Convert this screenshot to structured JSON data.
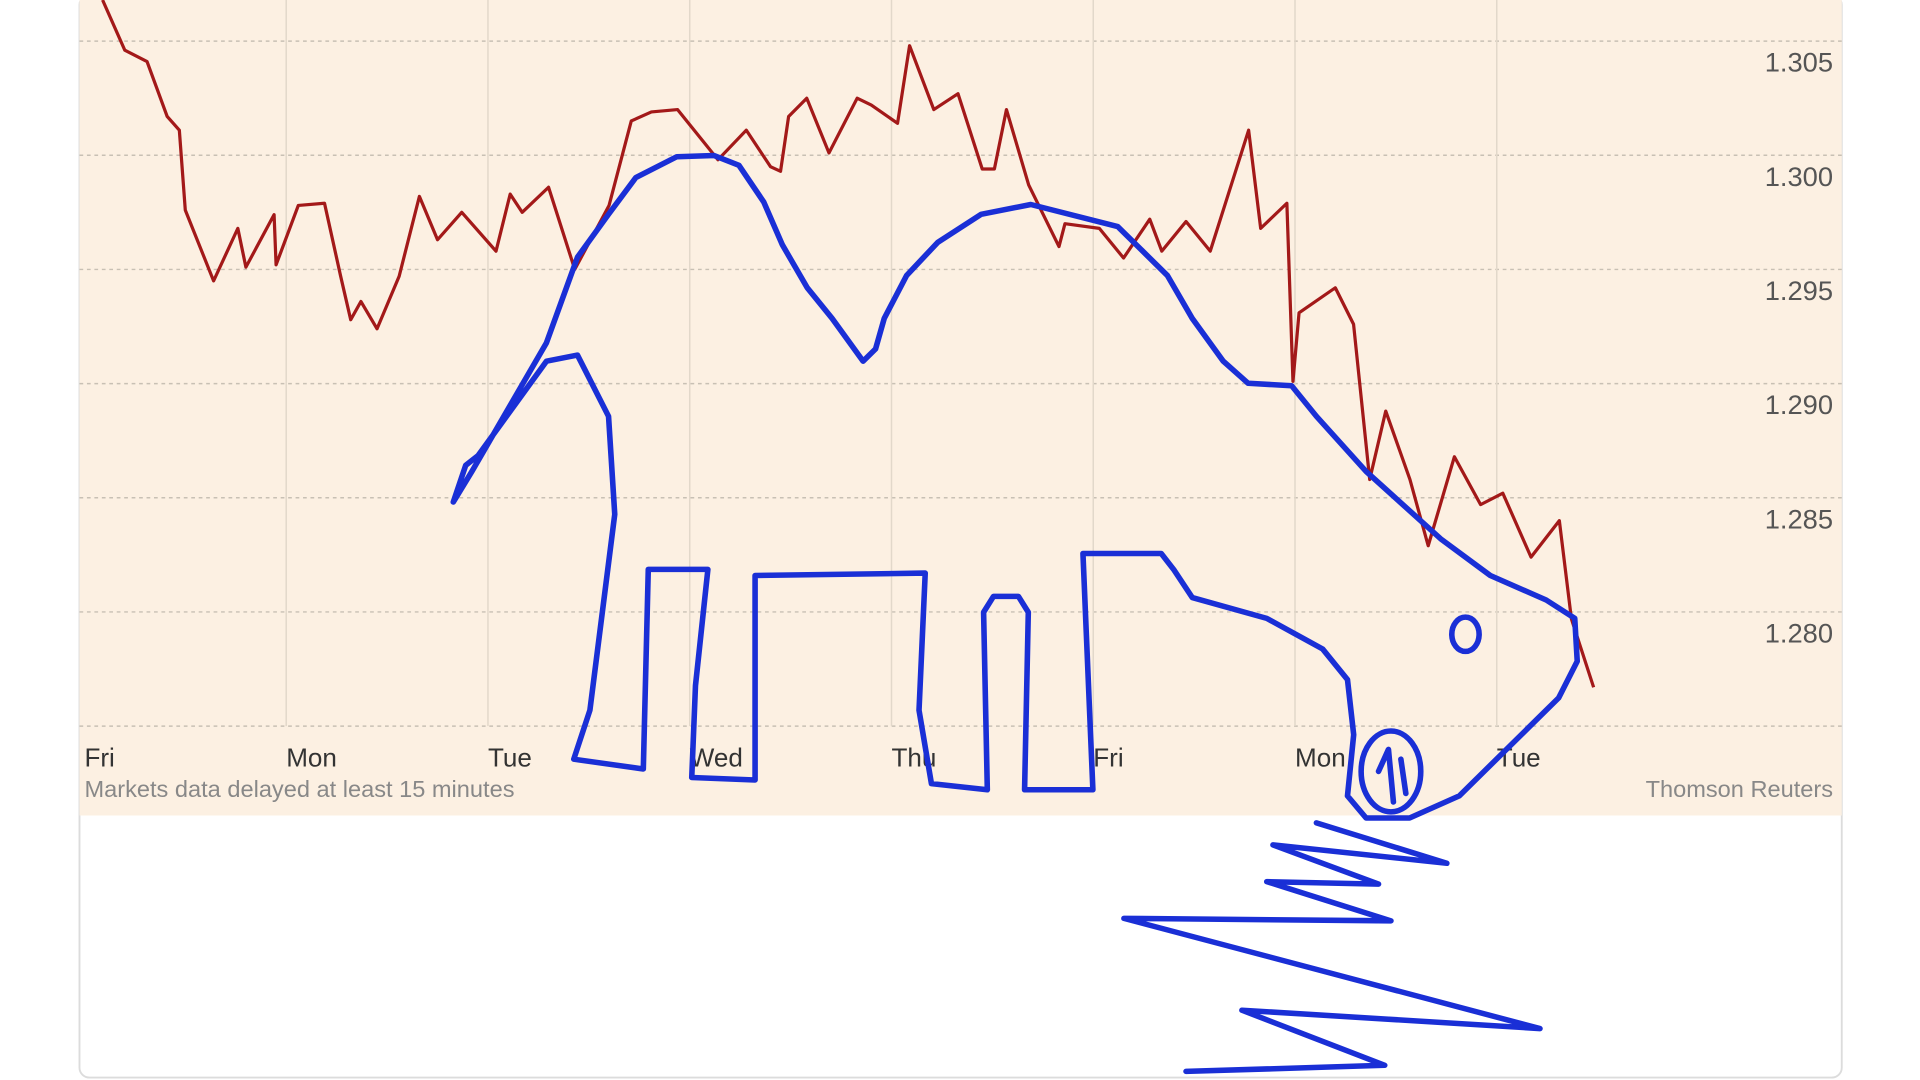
{
  "chart_data": {
    "type": "line",
    "xlim": [
      0,
      8.71
    ],
    "ylim": [
      1.275,
      1.3068
    ],
    "xticks": [
      {
        "value": 0,
        "label": "Fri"
      },
      {
        "value": 1,
        "label": "Mon"
      },
      {
        "value": 2,
        "label": "Tue"
      },
      {
        "value": 3,
        "label": "Wed"
      },
      {
        "value": 4,
        "label": "Thu"
      },
      {
        "value": 5,
        "label": "Fri"
      },
      {
        "value": 6,
        "label": "Mon"
      },
      {
        "value": 7,
        "label": "Tue"
      }
    ],
    "yticks": [
      {
        "value": 1.28,
        "label": "1.280"
      },
      1.285,
      {
        "value": 1.29,
        "label": "1.290"
      },
      1.295,
      {
        "value": 1.3,
        "label": "1.300"
      },
      1.305
    ],
    "grid": true,
    "note": "Markets data delayed at least 15 minutes",
    "source": "Thomson Reuters",
    "series": [
      {
        "color": "#a31919",
        "x": [
          0.09,
          0.2,
          0.31,
          0.41,
          0.47,
          0.5,
          0.64,
          0.76,
          0.8,
          0.94,
          0.95,
          1.06,
          1.19,
          1.27,
          1.32,
          1.37,
          1.45,
          1.56,
          1.66,
          1.75,
          1.87,
          2.04,
          2.11,
          2.17,
          2.3,
          2.43,
          2.6,
          2.71,
          2.81,
          2.94,
          3.14,
          3.28,
          3.4,
          3.45,
          3.49,
          3.58,
          3.69,
          3.83,
          3.9,
          4.03,
          4.09,
          4.21,
          4.33,
          4.45,
          4.51,
          4.57,
          4.68,
          4.83,
          4.86,
          5.03,
          5.15,
          5.28,
          5.34,
          5.46,
          5.58,
          5.77,
          5.83,
          5.96,
          5.99,
          6.02,
          6.2,
          6.29,
          6.37,
          6.45,
          6.57,
          6.66,
          6.79,
          6.92,
          7.03,
          7.17,
          7.31,
          7.37,
          7.48
        ],
        "values": [
          1.3068,
          1.3046,
          1.3041,
          1.3017,
          1.3011,
          1.2976,
          1.2945,
          1.2968,
          1.2951,
          1.2974,
          1.2952,
          1.2978,
          1.2979,
          1.2947,
          1.2928,
          1.2936,
          1.2924,
          1.2947,
          1.2982,
          1.2963,
          1.2975,
          1.2958,
          1.2983,
          1.2975,
          1.2986,
          1.295,
          1.2978,
          1.3015,
          1.3019,
          1.302,
          1.2998,
          1.3011,
          1.2995,
          1.2993,
          1.3017,
          1.3025,
          1.3001,
          1.3025,
          1.3022,
          1.3014,
          1.3048,
          1.302,
          1.3027,
          1.2994,
          1.2994,
          1.302,
          1.2987,
          1.296,
          1.297,
          1.2968,
          1.2955,
          1.2972,
          1.2958,
          1.2971,
          1.2958,
          1.3011,
          1.2968,
          1.2979,
          1.2901,
          1.2931,
          1.2942,
          1.2926,
          1.2858,
          1.2888,
          1.2858,
          1.2829,
          1.2868,
          1.2847,
          1.2852,
          1.2824,
          1.284,
          1.2797,
          1.2767
        ]
      }
    ]
  }
}
